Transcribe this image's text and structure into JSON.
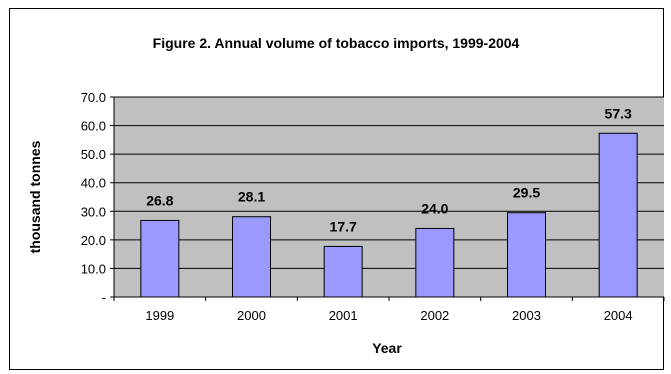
{
  "chart_data": {
    "type": "bar",
    "title": "Figure 2. Annual volume of tobacco imports, 1999-2004",
    "xlabel": "Year",
    "ylabel": "thousand tonnes",
    "categories": [
      "1999",
      "2000",
      "2001",
      "2002",
      "2003",
      "2004"
    ],
    "values": [
      26.8,
      28.1,
      17.7,
      24.0,
      29.5,
      57.3
    ],
    "data_labels": [
      "26.8",
      "28.1",
      "17.7",
      "24.0",
      "29.5",
      "57.3"
    ],
    "ylim": [
      0,
      70
    ],
    "yticks": [
      0,
      10,
      20,
      30,
      40,
      50,
      60,
      70
    ],
    "ytick_labels": [
      "-",
      "10.0",
      "20.0",
      "30.0",
      "40.0",
      "50.0",
      "60.0",
      "70.0"
    ],
    "grid": true,
    "legend": "none",
    "colors": {
      "plot_background": "#C0C0C0",
      "bar_fill": "#9999FF",
      "bar_stroke": "#000000",
      "gridline": "#000000"
    }
  }
}
